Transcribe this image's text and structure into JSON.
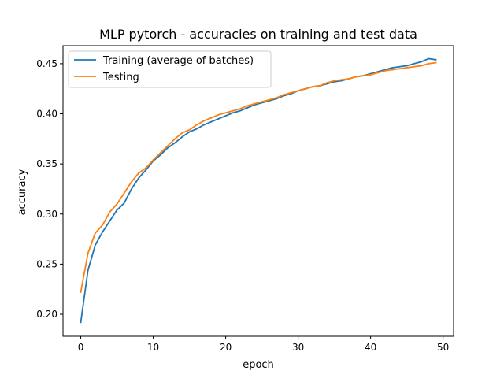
{
  "chart_data": {
    "type": "line",
    "title": "MLP pytorch - accuracies on training and test data",
    "xlabel": "epoch",
    "ylabel": "accuracy",
    "xlim": [
      -2.45,
      51.45
    ],
    "ylim": [
      0.178,
      0.468
    ],
    "xticks": [
      0,
      10,
      20,
      30,
      40,
      50
    ],
    "yticks": [
      0.2,
      0.25,
      0.3,
      0.35,
      0.4,
      0.45
    ],
    "grid": false,
    "legend_position": "top-left",
    "x": [
      0,
      1,
      2,
      3,
      4,
      5,
      6,
      7,
      8,
      9,
      10,
      11,
      12,
      13,
      14,
      15,
      16,
      17,
      18,
      19,
      20,
      21,
      22,
      23,
      24,
      25,
      26,
      27,
      28,
      29,
      30,
      31,
      32,
      33,
      34,
      35,
      36,
      37,
      38,
      39,
      40,
      41,
      42,
      43,
      44,
      45,
      46,
      47,
      48,
      49
    ],
    "series": [
      {
        "name": "Training (average of batches)",
        "color": "#1f77b4",
        "values": [
          0.192,
          0.244,
          0.269,
          0.282,
          0.293,
          0.304,
          0.311,
          0.325,
          0.336,
          0.344,
          0.353,
          0.359,
          0.366,
          0.371,
          0.377,
          0.382,
          0.385,
          0.389,
          0.392,
          0.395,
          0.398,
          0.401,
          0.403,
          0.406,
          0.409,
          0.411,
          0.413,
          0.415,
          0.418,
          0.42,
          0.423,
          0.425,
          0.427,
          0.428,
          0.43,
          0.432,
          0.433,
          0.435,
          0.437,
          0.438,
          0.44,
          0.442,
          0.444,
          0.446,
          0.447,
          0.448,
          0.45,
          0.452,
          0.455,
          0.454
        ]
      },
      {
        "name": "Testing",
        "color": "#ff7f0e",
        "values": [
          0.222,
          0.261,
          0.281,
          0.289,
          0.302,
          0.31,
          0.321,
          0.332,
          0.341,
          0.346,
          0.354,
          0.361,
          0.368,
          0.375,
          0.381,
          0.384,
          0.389,
          0.393,
          0.396,
          0.399,
          0.401,
          0.403,
          0.405,
          0.408,
          0.41,
          0.412,
          0.414,
          0.416,
          0.419,
          0.421,
          0.423,
          0.425,
          0.427,
          0.428,
          0.431,
          0.433,
          0.434,
          0.435,
          0.437,
          0.438,
          0.439,
          0.441,
          0.443,
          0.444,
          0.445,
          0.446,
          0.447,
          0.448,
          0.45,
          0.451
        ]
      }
    ]
  }
}
